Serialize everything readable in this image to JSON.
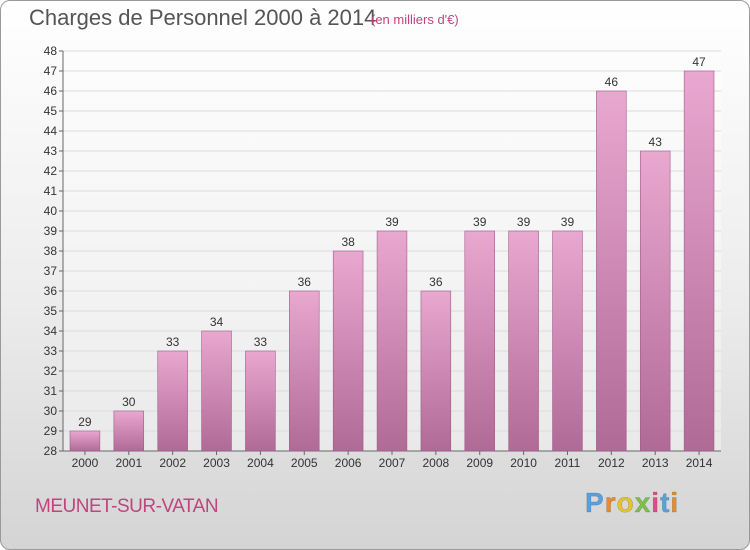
{
  "title": "Charges de Personnel 2000 à 2014",
  "subtitle": "(en milliers d'€)",
  "commune": "MEUNET-SUR-VATAN",
  "logo": {
    "letters": [
      "P",
      "r",
      "o",
      "x",
      "i",
      "t",
      "i"
    ],
    "colors": [
      "#5aa0dc",
      "#e98a2b",
      "#e6c428",
      "#7cc24a",
      "#e04c8a",
      "#5aa0dc",
      "#e98a2b"
    ]
  },
  "colors": {
    "bar_top": "#e9a8d0",
    "bar_bottom": "#b06a96",
    "grid": "#dcdcdc",
    "axis": "#666666"
  },
  "chart_data": {
    "type": "bar",
    "categories": [
      "2000",
      "2001",
      "2002",
      "2003",
      "2004",
      "2005",
      "2006",
      "2007",
      "2008",
      "2009",
      "2010",
      "2011",
      "2012",
      "2013",
      "2014"
    ],
    "values": [
      29,
      30,
      33,
      34,
      33,
      36,
      38,
      39,
      36,
      39,
      39,
      39,
      46,
      43,
      47
    ],
    "ylim": [
      28,
      48
    ],
    "yticks": [
      28,
      29,
      30,
      31,
      32,
      33,
      34,
      35,
      36,
      37,
      38,
      39,
      40,
      41,
      42,
      43,
      44,
      45,
      46,
      47,
      48
    ],
    "grid": true,
    "xlabel": "",
    "ylabel": ""
  }
}
